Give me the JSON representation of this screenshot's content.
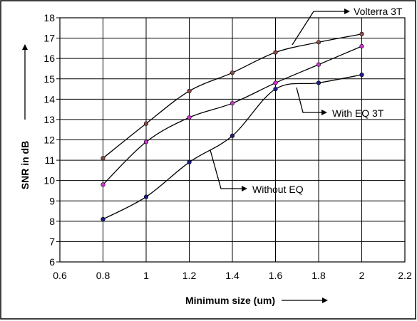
{
  "chart_data": {
    "type": "line",
    "title": "",
    "xlabel": "Minimum size (um)",
    "ylabel": "SNR in dB",
    "xlim": [
      0.6,
      2.2
    ],
    "ylim": [
      6,
      18
    ],
    "x_ticks": [
      "0.6",
      "0.8",
      "1",
      "1.2",
      "1.4",
      "1.6",
      "1.8",
      "2",
      "2.2"
    ],
    "y_ticks": [
      "6",
      "7",
      "8",
      "9",
      "10",
      "11",
      "12",
      "13",
      "14",
      "15",
      "16",
      "17",
      "18"
    ],
    "grid": true,
    "x": [
      0.8,
      1.0,
      1.2,
      1.4,
      1.6,
      1.8,
      2.0
    ],
    "series": [
      {
        "name": "Volterra 3T",
        "values": [
          11.1,
          12.8,
          14.4,
          15.3,
          16.3,
          16.8,
          17.2
        ],
        "marker_color": "#8a4a4a"
      },
      {
        "name": "With EQ 3T",
        "values": [
          9.8,
          11.9,
          13.1,
          13.8,
          14.8,
          15.7,
          16.6
        ],
        "marker_color": "#cc33cc"
      },
      {
        "name": "Without EQ",
        "values": [
          8.1,
          9.2,
          10.9,
          12.2,
          14.5,
          14.8,
          15.2
        ],
        "marker_color": "#1c1c8c"
      }
    ],
    "annotations": [
      {
        "text": "Volterra 3T",
        "series": 0
      },
      {
        "text": "With EQ 3T",
        "series": 1
      },
      {
        "text": "Without EQ",
        "series": 2
      }
    ]
  }
}
